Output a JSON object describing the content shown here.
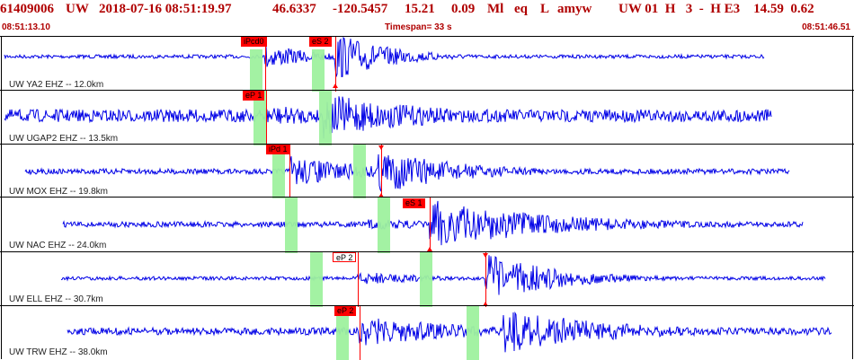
{
  "header": {
    "event_id": "61409006",
    "network": "UW",
    "datetime": "2018-07-16 08:51:19.97",
    "lat": "46.6337",
    "lon": "-120.5457",
    "depth": "15.21",
    "mag": "0.09",
    "mag_type": "Ml",
    "etype": "eq",
    "flags": "L",
    "author": "amyw",
    "right_info": "UW 01  H   3  -  H E3    14.59  0.62"
  },
  "time_row": {
    "start": "08:51:13.10",
    "span": "Timespan=  33 s",
    "end": "08:51:46.51"
  },
  "colors": {
    "trace": "#0000e6",
    "pick": "#ff0000",
    "window": "#9ef19e",
    "header_text": "#b00000"
  },
  "stations": [
    {
      "label": "UW YA2 EHZ -- 12.0km",
      "picks": [
        "iPcd0",
        "eS 2"
      ]
    },
    {
      "label": "UW UGAP2 EHZ -- 13.5km",
      "picks": [
        "eP 1"
      ]
    },
    {
      "label": "UW MOX EHZ -- 19.8km",
      "picks": [
        "iPd 1"
      ]
    },
    {
      "label": "UW NAC EHZ -- 24.0km",
      "picks": [
        "eS 1"
      ]
    },
    {
      "label": "UW ELL EHZ -- 30.7km",
      "picks": [
        "eP 2"
      ]
    },
    {
      "label": "UW TRW EHZ -- 38.0km",
      "picks": [
        "eP 2"
      ]
    }
  ]
}
